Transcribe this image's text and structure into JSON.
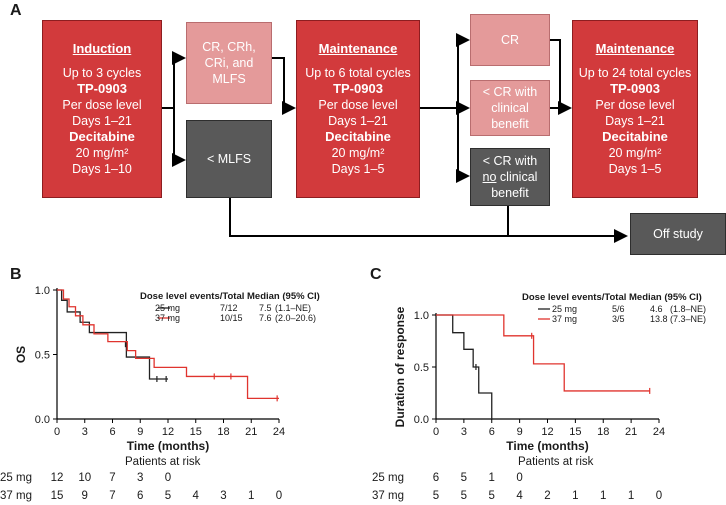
{
  "panels": {
    "a": "A",
    "b": "B",
    "c": "C"
  },
  "diagram": {
    "induction": {
      "title": "Induction",
      "line1": "Up to 3 cycles",
      "drug1": "TP-0903",
      "line2": "Per dose level",
      "line3": "Days 1–21",
      "drug2": "Decitabine",
      "line4": "20 mg/m²",
      "line5": "Days 1–10"
    },
    "response_good": {
      "line1": "CR, CRh,",
      "line2": "CRi, and",
      "line3": "MLFS"
    },
    "response_poor": {
      "label": "< MLFS"
    },
    "maint1": {
      "title": "Maintenance",
      "line1": "Up to 6 total cycles",
      "drug1": "TP-0903",
      "line2": "Per dose level",
      "line3": "Days 1–21",
      "drug2": "Decitabine",
      "line4": "20 mg/m²",
      "line5": "Days 1–5"
    },
    "cr": {
      "label": "CR"
    },
    "lt_cr_benefit": {
      "line1": "< CR with",
      "line2": "clinical",
      "line3": "benefit"
    },
    "lt_cr_no_benefit": {
      "line1": "< CR with",
      "line2a": "no",
      "line2b": " clinical",
      "line3": "benefit"
    },
    "maint2": {
      "title": "Maintenance",
      "line1": "Up to 24 total cycles",
      "drug1": "TP-0903",
      "line2": "Per dose level",
      "line3": "Days 1–21",
      "drug2": "Decitabine",
      "line4": "20 mg/m²",
      "line5": "Days 1–5"
    },
    "off_study": "Off study"
  },
  "plot_b": {
    "ylabel": "OS",
    "xlabel": "Time (months)",
    "legend_header": "Dose level events/Total Median (95% CI)",
    "legend_rows": [
      {
        "name": "25 mg",
        "events": "7/12",
        "median": "7.5",
        "ci": "(1.1–NE)",
        "color": "#222222"
      },
      {
        "name": "37 mg",
        "events": "10/15",
        "median": "7.6",
        "ci": "(2.0–20.6)",
        "color": "#e0342e"
      }
    ],
    "risk_title": "Patients at risk",
    "risk_rows": [
      {
        "label": "25 mg",
        "values": [
          "12",
          "10",
          "7",
          "3",
          "0"
        ]
      },
      {
        "label": "37 mg",
        "values": [
          "15",
          "9",
          "7",
          "6",
          "5",
          "4",
          "3",
          "1",
          "0"
        ]
      }
    ]
  },
  "plot_c": {
    "ylabel": "Duration of response",
    "xlabel": "Time (months)",
    "legend_header": "Dose level events/Total Median (95% CI)",
    "legend_rows": [
      {
        "name": "25 mg",
        "events": "5/6",
        "median": "4.6",
        "ci": "(1.8–NE)",
        "color": "#222222"
      },
      {
        "name": "37 mg",
        "events": "3/5",
        "median": "13.8",
        "ci": "(7.3–NE)",
        "color": "#e0342e"
      }
    ],
    "risk_title": "Patients at risk",
    "risk_rows": [
      {
        "label": "25 mg",
        "values": [
          "6",
          "5",
          "1",
          "0"
        ]
      },
      {
        "label": "37 mg",
        "values": [
          "5",
          "5",
          "5",
          "4",
          "2",
          "1",
          "1",
          "1",
          "0"
        ]
      }
    ]
  },
  "chart_data": [
    {
      "type": "line",
      "subtype": "kaplan-meier",
      "title": "",
      "xlabel": "Time (months)",
      "ylabel": "OS",
      "xlim": [
        0,
        24
      ],
      "ylim": [
        0,
        1.0
      ],
      "xticks": [
        "0",
        "3",
        "6",
        "9",
        "12",
        "15",
        "18",
        "21",
        "24"
      ],
      "yticks": [
        "0.0",
        "0.5",
        "1.0"
      ],
      "series": [
        {
          "name": "25 mg",
          "color": "#222222",
          "steps": [
            [
              0,
              1.0
            ],
            [
              0.5,
              0.92
            ],
            [
              1.1,
              0.83
            ],
            [
              2.5,
              0.75
            ],
            [
              3.5,
              0.67
            ],
            [
              7.5,
              0.48
            ],
            [
              10.0,
              0.31
            ],
            [
              12.0,
              0.31
            ]
          ],
          "censors": [
            [
              7.4,
              0.58
            ],
            [
              10.8,
              0.31
            ],
            [
              11.8,
              0.31
            ]
          ]
        },
        {
          "name": "37 mg",
          "color": "#e0342e",
          "steps": [
            [
              0,
              1.0
            ],
            [
              0.7,
              0.93
            ],
            [
              1.3,
              0.87
            ],
            [
              2.0,
              0.8
            ],
            [
              2.8,
              0.73
            ],
            [
              4.0,
              0.66
            ],
            [
              5.5,
              0.6
            ],
            [
              7.6,
              0.53
            ],
            [
              8.5,
              0.47
            ],
            [
              10.5,
              0.4
            ],
            [
              14.0,
              0.33
            ],
            [
              20.6,
              0.16
            ],
            [
              24.0,
              0.16
            ]
          ],
          "censors": [
            [
              17.0,
              0.33
            ],
            [
              18.8,
              0.33
            ],
            [
              23.8,
              0.16
            ]
          ]
        }
      ]
    },
    {
      "type": "line",
      "subtype": "kaplan-meier",
      "title": "",
      "xlabel": "Time (months)",
      "ylabel": "Duration of response",
      "xlim": [
        0,
        24
      ],
      "ylim": [
        0,
        1.0
      ],
      "xticks": [
        "0",
        "3",
        "6",
        "9",
        "12",
        "15",
        "18",
        "21",
        "24"
      ],
      "yticks": [
        "0.0",
        "0.5",
        "1.0"
      ],
      "series": [
        {
          "name": "25 mg",
          "color": "#222222",
          "steps": [
            [
              0,
              1.0
            ],
            [
              1.8,
              0.83
            ],
            [
              3.0,
              0.67
            ],
            [
              4.0,
              0.5
            ],
            [
              4.6,
              0.25
            ],
            [
              6.0,
              0.0
            ]
          ],
          "censors": [
            [
              4.3,
              0.5
            ]
          ]
        },
        {
          "name": "37 mg",
          "color": "#e0342e",
          "steps": [
            [
              0,
              1.0
            ],
            [
              7.3,
              0.8
            ],
            [
              10.5,
              0.53
            ],
            [
              13.8,
              0.27
            ],
            [
              23.0,
              0.27
            ]
          ],
          "censors": [
            [
              10.3,
              0.8
            ],
            [
              23.0,
              0.27
            ]
          ]
        }
      ]
    }
  ]
}
